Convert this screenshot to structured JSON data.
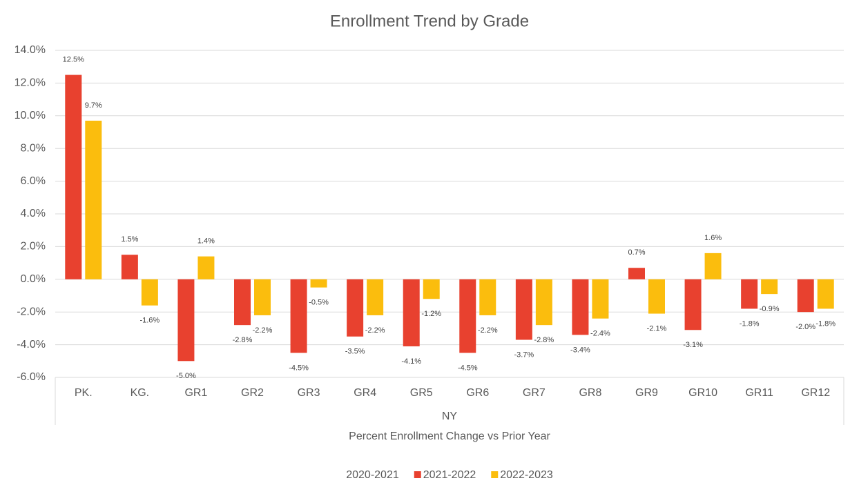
{
  "chart_data": {
    "type": "bar",
    "title": "Enrollment Trend by Grade",
    "categories": [
      "PK.",
      "KG.",
      "GR1",
      "GR2",
      "GR3",
      "GR4",
      "GR5",
      "GR6",
      "GR7",
      "GR8",
      "GR9",
      "GR10",
      "GR11",
      "GR12"
    ],
    "group_label": "NY",
    "x_label": "Percent Enrollment Change vs Prior Year",
    "series": [
      {
        "name": "2020-2021",
        "values": [
          null,
          null,
          null,
          null,
          null,
          null,
          null,
          null,
          null,
          null,
          null,
          null,
          null,
          null
        ]
      },
      {
        "name": "2021-2022",
        "color": "#e8412f",
        "values": [
          12.5,
          1.5,
          -5.0,
          -2.8,
          -4.5,
          -3.5,
          -4.1,
          -4.5,
          -3.7,
          -3.4,
          0.7,
          -3.1,
          -1.8,
          -2.0
        ],
        "value_labels": [
          "12.5%",
          "1.5%",
          "-5.0%",
          "-2.8%",
          "-4.5%",
          "-3.5%",
          "-4.1%",
          "-4.5%",
          "-3.7%",
          "-3.4%",
          "0.7%",
          "-3.1%",
          "-1.8%",
          "-2.0%"
        ]
      },
      {
        "name": "2022-2023",
        "color": "#fbbd0d",
        "values": [
          9.7,
          -1.6,
          1.4,
          -2.2,
          -0.5,
          -2.2,
          -1.2,
          -2.2,
          -2.8,
          -2.4,
          -2.1,
          1.6,
          -0.9,
          -1.8
        ],
        "value_labels": [
          "9.7%",
          "-1.6%",
          "1.4%",
          "-2.2%",
          "-0.5%",
          "-2.2%",
          "-1.2%",
          "-2.2%",
          "-2.8%",
          "-2.4%",
          "-2.1%",
          "1.6%",
          "-0.9%",
          "-1.8%"
        ]
      }
    ],
    "ylim": [
      -6,
      14
    ],
    "yticks": [
      {
        "value": -6,
        "label": "-6.0%"
      },
      {
        "value": -4,
        "label": "-4.0%"
      },
      {
        "value": -2,
        "label": "-2.0%"
      },
      {
        "value": 0,
        "label": "0.0%"
      },
      {
        "value": 2,
        "label": "2.0%"
      },
      {
        "value": 4,
        "label": "4.0%"
      },
      {
        "value": 6,
        "label": "6.0%"
      },
      {
        "value": 8,
        "label": "8.0%"
      },
      {
        "value": 10,
        "label": "10.0%"
      },
      {
        "value": 12,
        "label": "12.0%"
      },
      {
        "value": 14,
        "label": "14.0%"
      }
    ],
    "grid": true,
    "legend": "bottom"
  }
}
